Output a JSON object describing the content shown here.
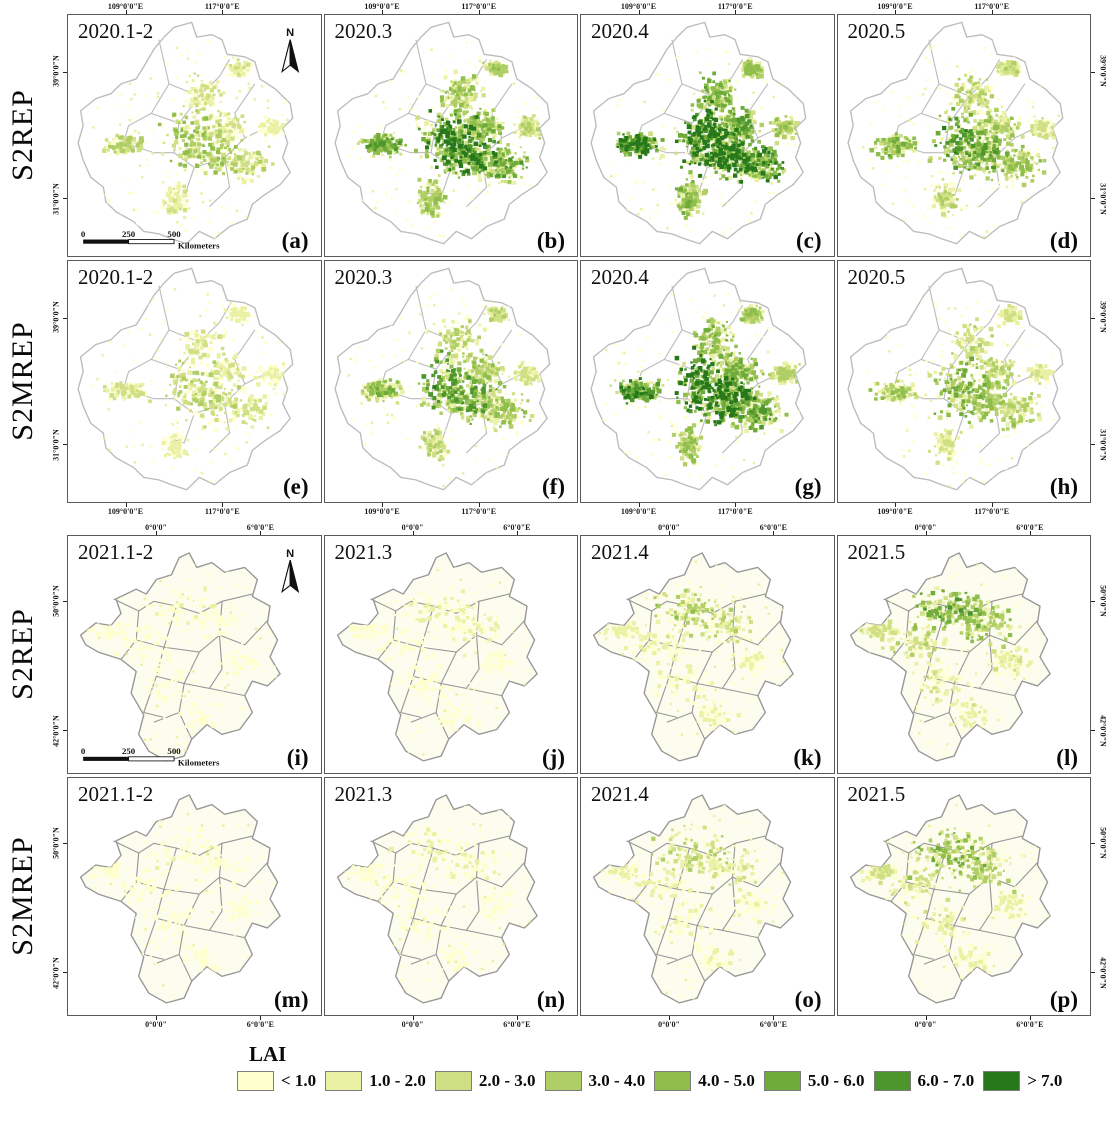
{
  "figure_type": "LAI seasonal map panels",
  "legend": {
    "title": "LAI",
    "classes": [
      {
        "label": "< 1.0",
        "color": "#FFFFCC"
      },
      {
        "label": "1.0 - 2.0",
        "color": "#EAF1A5"
      },
      {
        "label": "2.0 - 3.0",
        "color": "#CFDF84"
      },
      {
        "label": "3.0 - 4.0",
        "color": "#AFCE65"
      },
      {
        "label": "4.0 - 5.0",
        "color": "#8FBE4C"
      },
      {
        "label": "5.0 - 6.0",
        "color": "#6FAB3A"
      },
      {
        "label": "6.0 - 7.0",
        "color": "#4C962C"
      },
      {
        "label": "> 7.0",
        "color": "#26781A"
      }
    ]
  },
  "blocks": [
    {
      "region": "china",
      "north_label": "N",
      "scalebar": {
        "labels": [
          "0",
          "250",
          "500"
        ],
        "unit": "Kilometers"
      },
      "axis": {
        "top": [
          "109°0'0\"E",
          "117°0'0\"E"
        ],
        "bottom": [
          "109°0'0\"E",
          "117°0'0\"E"
        ],
        "left": [
          "39°0'0\"N",
          "31°0'0\"N"
        ],
        "right": [
          "39°0'0\"N",
          "31°0'0\"N"
        ]
      },
      "rows": [
        {
          "label": "S2REP",
          "panels": [
            {
              "title": "2020.1-2",
              "letter": "(a)",
              "greenness": 0.4,
              "north_arrow": true,
              "scalebar": true
            },
            {
              "title": "2020.3",
              "letter": "(b)",
              "greenness": 0.74
            },
            {
              "title": "2020.4",
              "letter": "(c)",
              "greenness": 0.9
            },
            {
              "title": "2020.5",
              "letter": "(d)",
              "greenness": 0.58
            }
          ]
        },
        {
          "label": "S2MREP",
          "panels": [
            {
              "title": "2020.1-2",
              "letter": "(e)",
              "greenness": 0.32
            },
            {
              "title": "2020.3",
              "letter": "(f)",
              "greenness": 0.58
            },
            {
              "title": "2020.4",
              "letter": "(g)",
              "greenness": 0.8
            },
            {
              "title": "2020.5",
              "letter": "(h)",
              "greenness": 0.48
            }
          ]
        }
      ]
    },
    {
      "region": "france",
      "north_label": "N",
      "scalebar": {
        "labels": [
          "0",
          "250",
          "500"
        ],
        "unit": "Kilometers"
      },
      "axis": {
        "top": [
          "0°0'0\"",
          "6°0'0\"E"
        ],
        "bottom": [
          "0°0'0\"",
          "6°0'0\"E"
        ],
        "left": [
          "50°0'0\"N",
          "42°0'0\"N"
        ],
        "right": [
          "50°0'0\"N",
          "42°0'0\"N"
        ]
      },
      "rows": [
        {
          "label": "S2REP",
          "panels": [
            {
              "title": "2021.1-2",
              "letter": "(i)",
              "greenness": 0.1,
              "north_arrow": true,
              "scalebar": true
            },
            {
              "title": "2021.3",
              "letter": "(j)",
              "greenness": 0.16
            },
            {
              "title": "2021.4",
              "letter": "(k)",
              "greenness": 0.34
            },
            {
              "title": "2021.5",
              "letter": "(l)",
              "greenness": 0.52
            }
          ]
        },
        {
          "label": "S2MREP",
          "panels": [
            {
              "title": "2021.1-2",
              "letter": "(m)",
              "greenness": 0.09
            },
            {
              "title": "2021.3",
              "letter": "(n)",
              "greenness": 0.14
            },
            {
              "title": "2021.4",
              "letter": "(o)",
              "greenness": 0.3
            },
            {
              "title": "2021.5",
              "letter": "(p)",
              "greenness": 0.46
            }
          ]
        }
      ]
    }
  ]
}
